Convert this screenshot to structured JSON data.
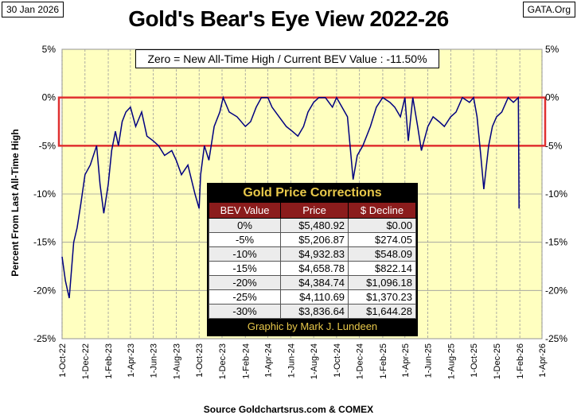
{
  "header": {
    "date": "30 Jan 2026",
    "site": "GATA.Org",
    "title": "Gold's Bear's Eye View 2022-26",
    "subtitle": "Zero = New All-Time High / Current  BEV Value : -11.50%"
  },
  "source": "Source Goldchartsrus.com & COMEX",
  "ylabel": "Percent  From Last  All-Time  High",
  "table": {
    "title": "Gold Price Corrections",
    "headers": [
      "BEV Value",
      "Price",
      "$ Decline"
    ],
    "rows": [
      [
        "0%",
        "$5,480.92",
        "$0.00"
      ],
      [
        "-5%",
        "$5,206.87",
        "$274.05"
      ],
      [
        "-10%",
        "$4,932.83",
        "$548.09"
      ],
      [
        "-15%",
        "$4,658.78",
        "$822.14"
      ],
      [
        "-20%",
        "$4,384.74",
        "$1,096.18"
      ],
      [
        "-25%",
        "$4,110.69",
        "$1,370.23"
      ],
      [
        "-30%",
        "$3,836.64",
        "$1,644.28"
      ]
    ],
    "footer": "Graphic by Mark J. Lundeen"
  },
  "colors": {
    "plot_bg": "#ffffc0",
    "line": "#000080",
    "highlight": "#e03030",
    "table_header": "#8b1c1c",
    "table_text": "#e8c84a"
  },
  "chart_data": {
    "type": "line",
    "ylim": [
      -25,
      5
    ],
    "xlim": [
      "2022-10-01",
      "2026-04-01"
    ],
    "y_ticks": [
      "5%",
      "0%",
      "-5%",
      "-10%",
      "-15%",
      "-20%",
      "-25%"
    ],
    "y_tick_values": [
      5,
      0,
      -5,
      -10,
      -15,
      -20,
      -25
    ],
    "x_ticks": [
      "1-Oct-22",
      "1-Dec-22",
      "1-Feb-23",
      "1-Apr-23",
      "1-Jun-23",
      "1-Aug-23",
      "1-Oct-23",
      "1-Dec-23",
      "1-Feb-24",
      "1-Apr-24",
      "1-Jun-24",
      "1-Aug-24",
      "1-Oct-24",
      "1-Dec-24",
      "1-Feb-25",
      "1-Apr-25",
      "1-Jun-25",
      "1-Aug-25",
      "1-Oct-25",
      "1-Dec-25",
      "1-Feb-26",
      "1-Apr-26"
    ],
    "x_tick_dates": [
      "2022-10-01",
      "2022-12-01",
      "2023-02-01",
      "2023-04-01",
      "2023-06-01",
      "2023-08-01",
      "2023-10-01",
      "2023-12-01",
      "2024-02-01",
      "2024-04-01",
      "2024-06-01",
      "2024-08-01",
      "2024-10-01",
      "2024-12-01",
      "2025-02-01",
      "2025-04-01",
      "2025-06-01",
      "2025-08-01",
      "2025-10-01",
      "2025-12-01",
      "2026-02-01",
      "2026-04-01"
    ],
    "highlight_band": [
      -5,
      0
    ],
    "series": [
      {
        "x": [
          "2022-10-01",
          "2022-10-10",
          "2022-10-20",
          "2022-11-01",
          "2022-11-10",
          "2022-11-20",
          "2022-12-01",
          "2022-12-15",
          "2023-01-01",
          "2023-01-10",
          "2023-01-20",
          "2023-02-01",
          "2023-02-10",
          "2023-02-20",
          "2023-02-28",
          "2023-03-10",
          "2023-03-20",
          "2023-04-01",
          "2023-04-15",
          "2023-05-01",
          "2023-05-15",
          "2023-06-01",
          "2023-06-15",
          "2023-07-01",
          "2023-07-20",
          "2023-08-01",
          "2023-08-15",
          "2023-09-01",
          "2023-09-20",
          "2023-10-01",
          "2023-10-05",
          "2023-10-15",
          "2023-10-27",
          "2023-11-10",
          "2023-11-25",
          "2023-12-04",
          "2023-12-20",
          "2024-01-10",
          "2024-02-01",
          "2024-02-15",
          "2024-03-01",
          "2024-03-15",
          "2024-04-01",
          "2024-04-12",
          "2024-05-01",
          "2024-05-20",
          "2024-06-05",
          "2024-06-20",
          "2024-07-05",
          "2024-07-17",
          "2024-08-01",
          "2024-08-15",
          "2024-09-01",
          "2024-09-20",
          "2024-10-01",
          "2024-10-30",
          "2024-11-14",
          "2024-11-25",
          "2024-12-10",
          "2024-12-30",
          "2025-01-15",
          "2025-02-01",
          "2025-02-20",
          "2025-03-05",
          "2025-03-20",
          "2025-04-01",
          "2025-04-10",
          "2025-04-22",
          "2025-05-05",
          "2025-05-15",
          "2025-06-01",
          "2025-06-15",
          "2025-07-01",
          "2025-07-15",
          "2025-08-01",
          "2025-08-15",
          "2025-09-01",
          "2025-09-20",
          "2025-10-01",
          "2025-10-10",
          "2025-10-20",
          "2025-10-28",
          "2025-11-10",
          "2025-11-20",
          "2025-12-01",
          "2025-12-15",
          "2026-01-01",
          "2026-01-15",
          "2026-01-28",
          "2026-01-30"
        ],
        "y": [
          -16.5,
          -19,
          -20.8,
          -15,
          -13.5,
          -11,
          -8,
          -7,
          -5,
          -9,
          -12,
          -9,
          -5.5,
          -3.5,
          -5,
          -2.5,
          -1.5,
          -1,
          -3,
          -1.5,
          -4,
          -4.5,
          -5,
          -6,
          -5.5,
          -6.5,
          -8,
          -7,
          -10,
          -11.5,
          -8,
          -5,
          -6.5,
          -3,
          -1.5,
          0,
          -1.5,
          -2,
          -3,
          -2.5,
          -1,
          0,
          0,
          -1,
          -2,
          -3,
          -3.5,
          -4,
          -3,
          -1.5,
          -0.5,
          0,
          0,
          -1,
          0,
          -2,
          -8.5,
          -6,
          -5,
          -3,
          -1,
          0,
          -0.5,
          -1,
          -2,
          0,
          -4.5,
          0,
          -3,
          -5.5,
          -3,
          -2,
          -2.5,
          -3,
          -2,
          -1.5,
          0,
          -0.5,
          0,
          -2,
          -6,
          -9.5,
          -5,
          -3,
          -2,
          -1.5,
          0,
          -0.5,
          0,
          -11.5
        ]
      }
    ]
  }
}
